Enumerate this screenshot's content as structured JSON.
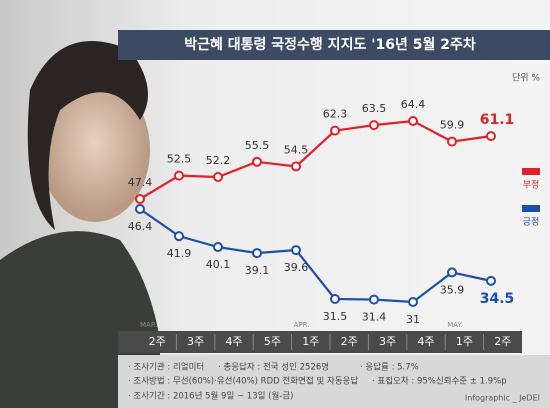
{
  "chart_data": {
    "type": "line",
    "title": "박근혜 대통령 국정수행 지지도 '16년 5월 2주차",
    "unit": "단위 %",
    "categories": [
      "2주",
      "3주",
      "4주",
      "5주",
      "1주",
      "2주",
      "3주",
      "4주",
      "1주",
      "2주"
    ],
    "months": [
      "MAR.",
      null,
      null,
      null,
      "APR.",
      null,
      null,
      null,
      "MAY.",
      null
    ],
    "series": [
      {
        "name": "부정",
        "color": "#e0202a",
        "values": [
          47.4,
          52.5,
          52.2,
          55.5,
          54.5,
          62.3,
          63.5,
          64.4,
          59.9,
          61.1
        ]
      },
      {
        "name": "긍정",
        "color": "#1f4fa8",
        "values": [
          46.4,
          41.9,
          40.1,
          39.1,
          39.6,
          31.5,
          31.4,
          31.0,
          35.9,
          34.5
        ]
      }
    ],
    "notes": [
      "· 조사기관 : 리얼미터",
      "· 총응답자 : 전국 성인 2526명",
      "· 응답률 : 5.7%",
      "· 조사방법 : 무선(60%)·유선(40%) RDD 전화면접 및 자동응답",
      "· 표집오차 : 95%신뢰수준 ± 1.9%p",
      "· 조사기간 : 2016년 5월 9일 ~ 13일 (월-금)"
    ],
    "credit": "Infographic _ JeDEI"
  }
}
